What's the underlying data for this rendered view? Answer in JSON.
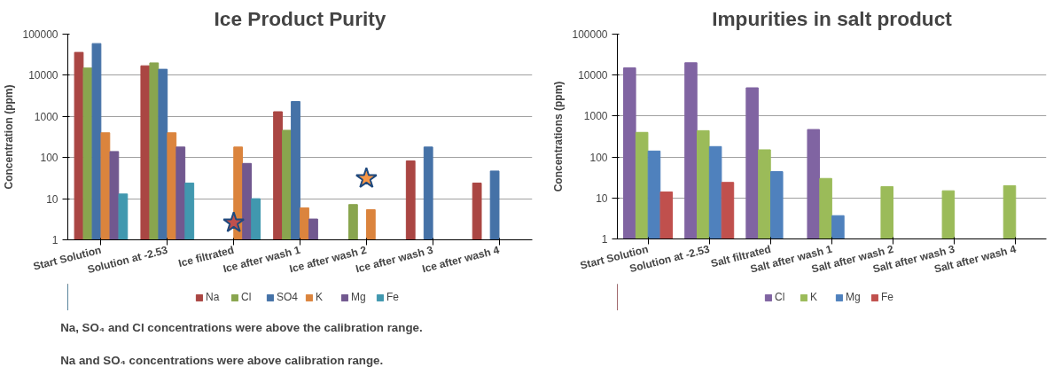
{
  "chart_data": [
    {
      "type": "bar",
      "title": "Ice Product Purity",
      "ylabel": "Concentration (ppm)",
      "log": true,
      "grid": "y",
      "legend": "bottom",
      "ylim": [
        1,
        100000
      ],
      "yticks": [
        1,
        10,
        100,
        1000,
        10000,
        100000
      ],
      "categories": [
        "Start Solution",
        "Solution at -2.53",
        "Ice filtrated",
        "Ice after wash 1",
        "Ice after wash 2",
        "Ice after wash 3",
        "Ice after wash 4"
      ],
      "series": [
        {
          "name": "Na",
          "color": "#aa4643",
          "values": [
            36000,
            17000,
            null,
            1300,
            null,
            83,
            24
          ]
        },
        {
          "name": "Cl",
          "color": "#89a54e",
          "values": [
            15000,
            20000,
            null,
            460,
            7.2,
            null,
            null
          ]
        },
        {
          "name": "SO4",
          "color": "#4572a7",
          "values": [
            59000,
            14000,
            null,
            2300,
            null,
            180,
            47
          ]
        },
        {
          "name": "K",
          "color": "#db843d",
          "values": [
            400,
            400,
            180,
            6,
            5.4,
            null,
            null
          ]
        },
        {
          "name": "Mg",
          "color": "#71588f",
          "values": [
            140,
            180,
            72,
            3.2,
            null,
            null,
            null
          ]
        },
        {
          "name": "Fe",
          "color": "#4198af",
          "values": [
            13,
            24,
            10,
            null,
            null,
            null,
            null
          ]
        },
        {
          "type": "scatter",
          "marker": "star",
          "colors": [
            null,
            null,
            "#c0504d",
            null,
            "#f79646",
            null,
            null
          ],
          "values": [
            null,
            null,
            2.6,
            null,
            31,
            null,
            null
          ]
        }
      ],
      "annotations": [
        "Na, SO₄ and Cl concentrations were above the calibration range.",
        "Na and SO₄ concentrations were above calibration range."
      ]
    },
    {
      "type": "bar",
      "title": "Impurities in salt product",
      "ylabel": "Concentrations (ppm)",
      "log": true,
      "grid": "y",
      "legend": "bottom",
      "ylim": [
        1,
        100000
      ],
      "yticks": [
        1,
        10,
        100,
        1000,
        10000,
        100000
      ],
      "categories": [
        "Start Solution",
        "Solution at -2.53",
        "Salt filtrated",
        "Salt after wash 1",
        "Salt after wash 2",
        "Salt after wash 3",
        "Salt after wash 4"
      ],
      "series": [
        {
          "name": "Cl",
          "color": "#8064a2",
          "values": [
            15000,
            20000,
            4900,
            470,
            null,
            null,
            null
          ]
        },
        {
          "name": "K",
          "color": "#9bbb59",
          "values": [
            400,
            440,
            150,
            30,
            19,
            15,
            20
          ]
        },
        {
          "name": "Mg",
          "color": "#4f81bd",
          "values": [
            140,
            180,
            44,
            3.7,
            null,
            null,
            null
          ]
        },
        {
          "name": "Fe",
          "color": "#c0504d",
          "values": [
            14,
            24,
            null,
            null,
            null,
            null,
            null
          ]
        }
      ]
    }
  ]
}
